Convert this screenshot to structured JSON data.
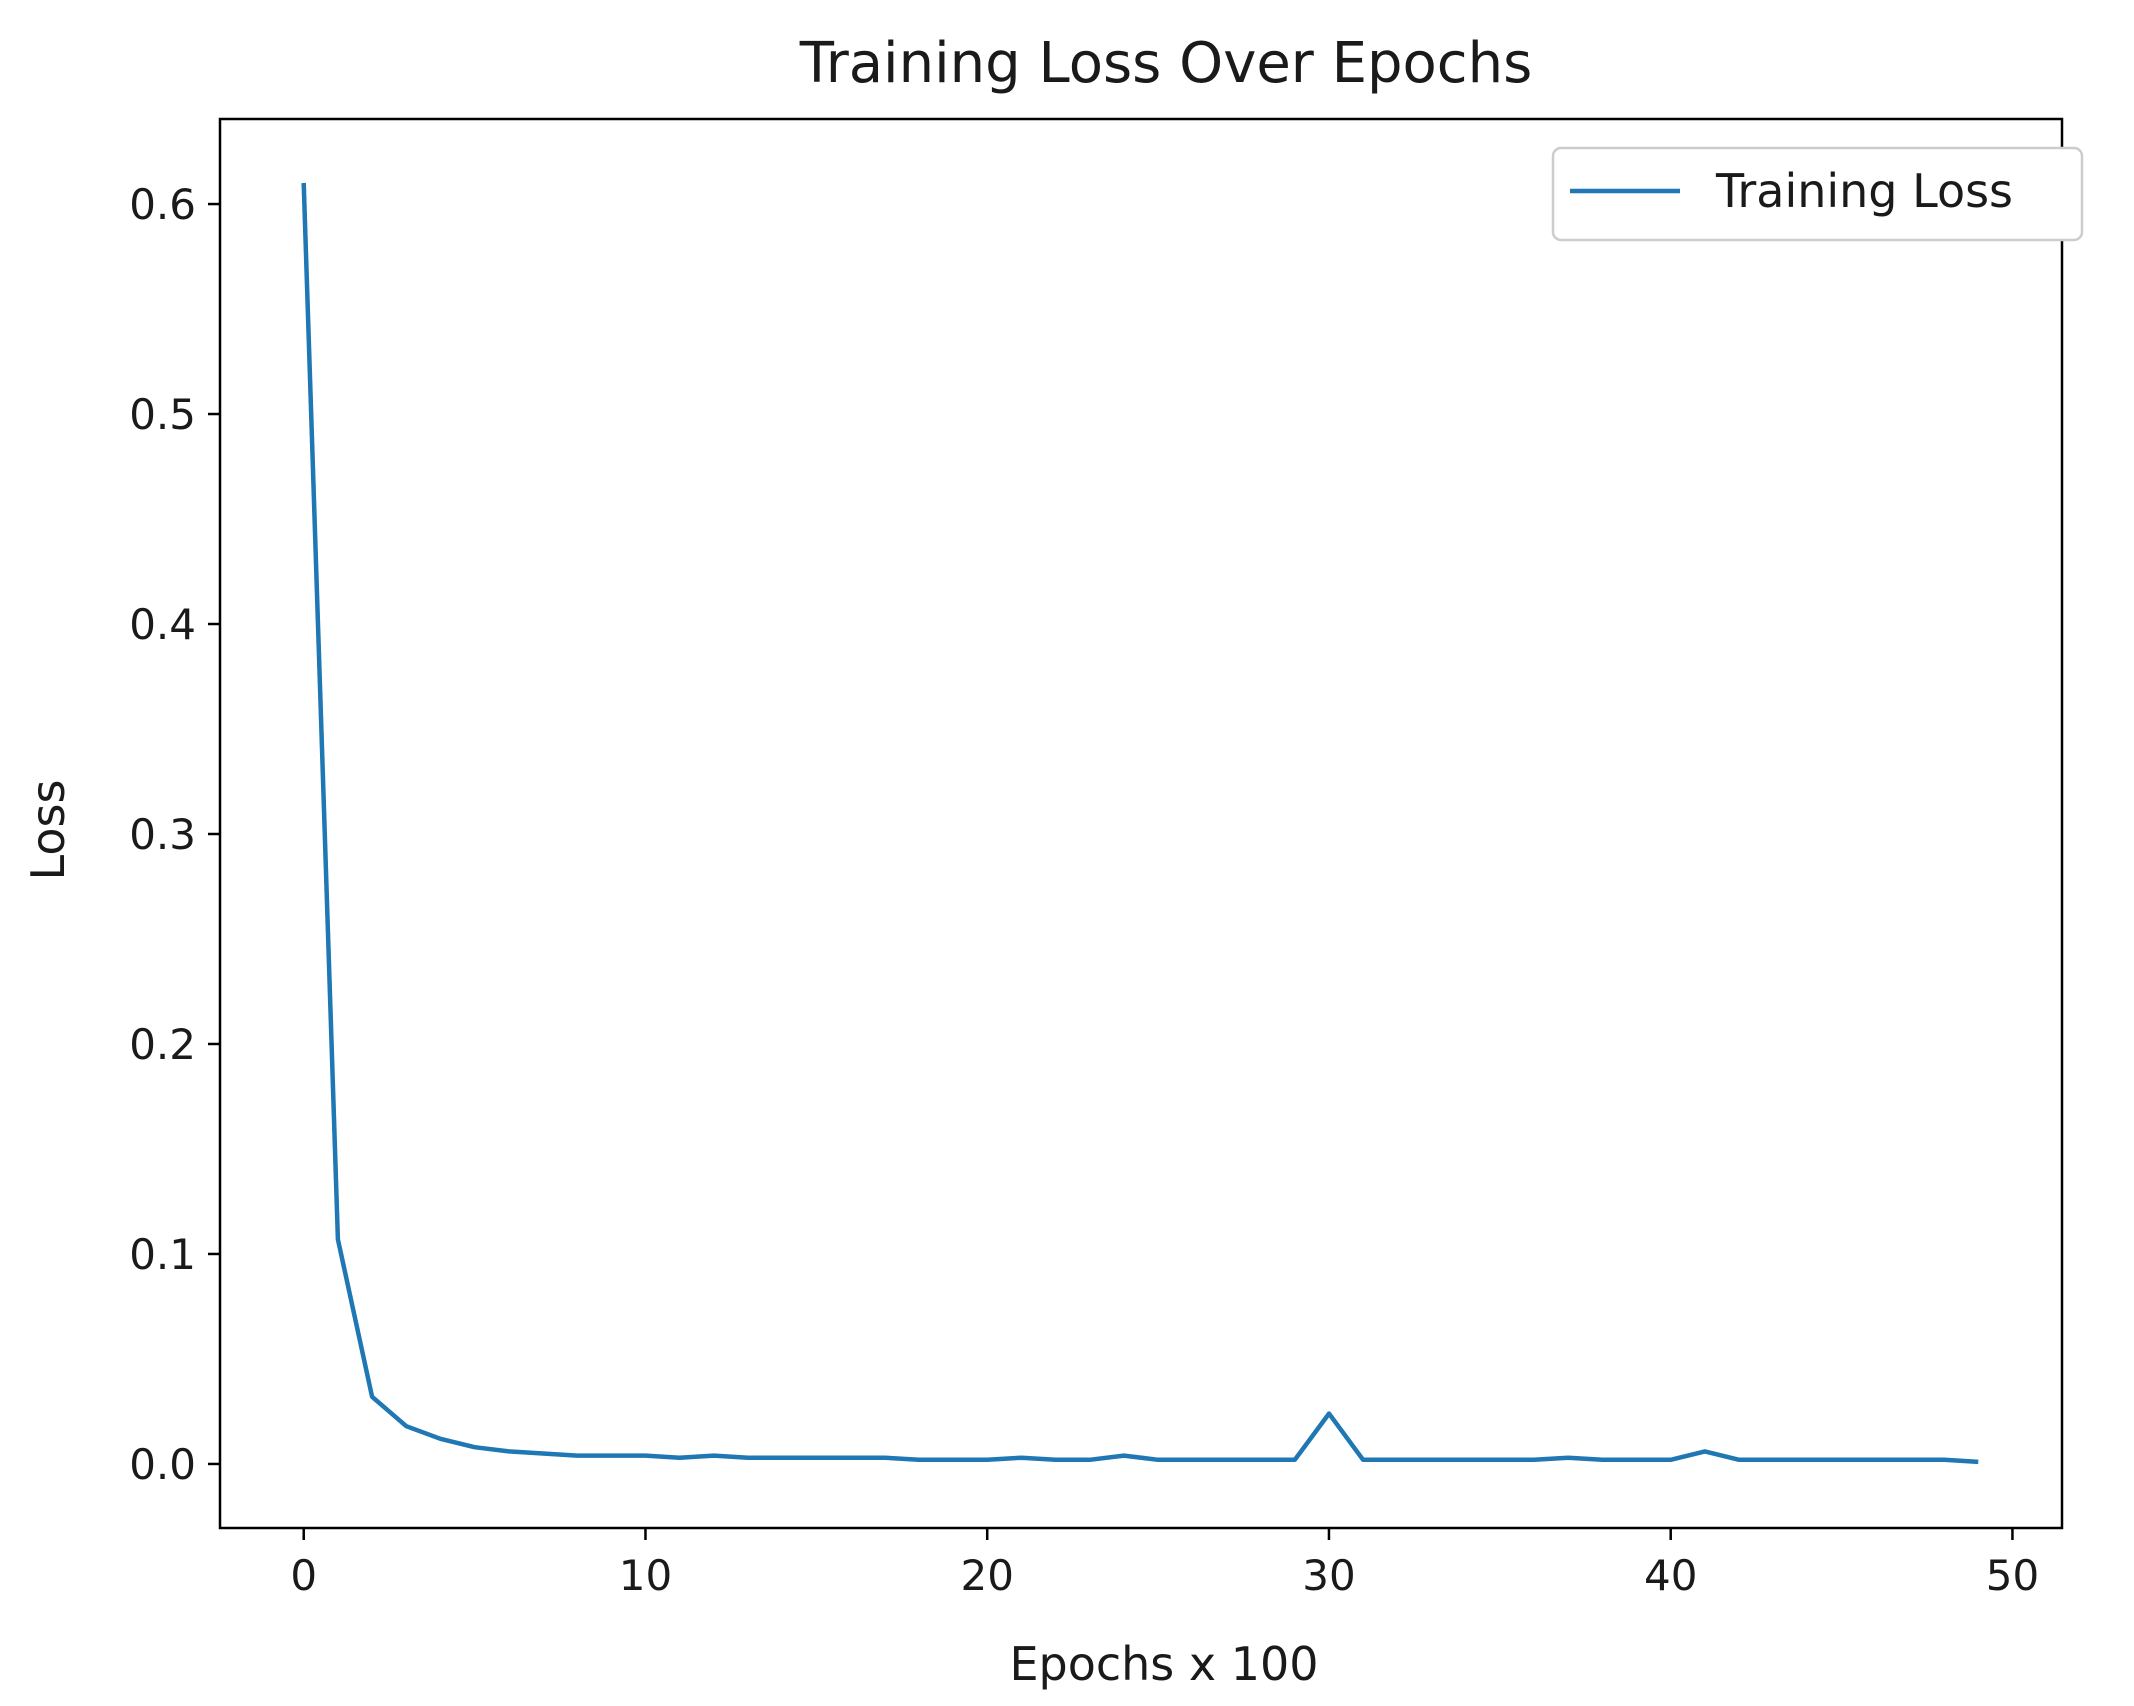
{
  "chart_data": {
    "type": "line",
    "title": "Training Loss Over Epochs",
    "xlabel": "Epochs x 100",
    "ylabel": "Loss",
    "xlim": [
      -2.45,
      51.45
    ],
    "ylim": [
      -0.0305,
      0.6405
    ],
    "xticks": [
      0,
      10,
      20,
      30,
      40,
      50
    ],
    "yticks": [
      0.0,
      0.1,
      0.2,
      0.3,
      0.4,
      0.5,
      0.6
    ],
    "xtick_labels": [
      "0",
      "10",
      "20",
      "30",
      "40",
      "50"
    ],
    "ytick_labels": [
      "0.0",
      "0.1",
      "0.2",
      "0.3",
      "0.4",
      "0.5",
      "0.6"
    ],
    "grid": false,
    "legend": {
      "position": "upper-right",
      "entries": [
        "Training Loss"
      ]
    },
    "colors": {
      "series": "#1f77b4",
      "axes": "#000000",
      "legend_border": "#cccccc"
    },
    "series": [
      {
        "name": "Training Loss",
        "x": [
          0,
          1,
          2,
          3,
          4,
          5,
          6,
          7,
          8,
          9,
          10,
          11,
          12,
          13,
          14,
          15,
          16,
          17,
          18,
          19,
          20,
          21,
          22,
          23,
          24,
          25,
          26,
          27,
          28,
          29,
          30,
          31,
          32,
          33,
          34,
          35,
          36,
          37,
          38,
          39,
          40,
          41,
          42,
          43,
          44,
          45,
          46,
          47,
          48,
          49
        ],
        "values": [
          0.61,
          0.107,
          0.032,
          0.018,
          0.012,
          0.008,
          0.006,
          0.005,
          0.004,
          0.004,
          0.004,
          0.003,
          0.004,
          0.003,
          0.003,
          0.003,
          0.003,
          0.003,
          0.002,
          0.002,
          0.002,
          0.003,
          0.002,
          0.002,
          0.004,
          0.002,
          0.002,
          0.002,
          0.002,
          0.002,
          0.024,
          0.002,
          0.002,
          0.002,
          0.002,
          0.002,
          0.002,
          0.003,
          0.002,
          0.002,
          0.002,
          0.006,
          0.002,
          0.002,
          0.002,
          0.002,
          0.002,
          0.002,
          0.002,
          0.001
        ]
      }
    ]
  }
}
